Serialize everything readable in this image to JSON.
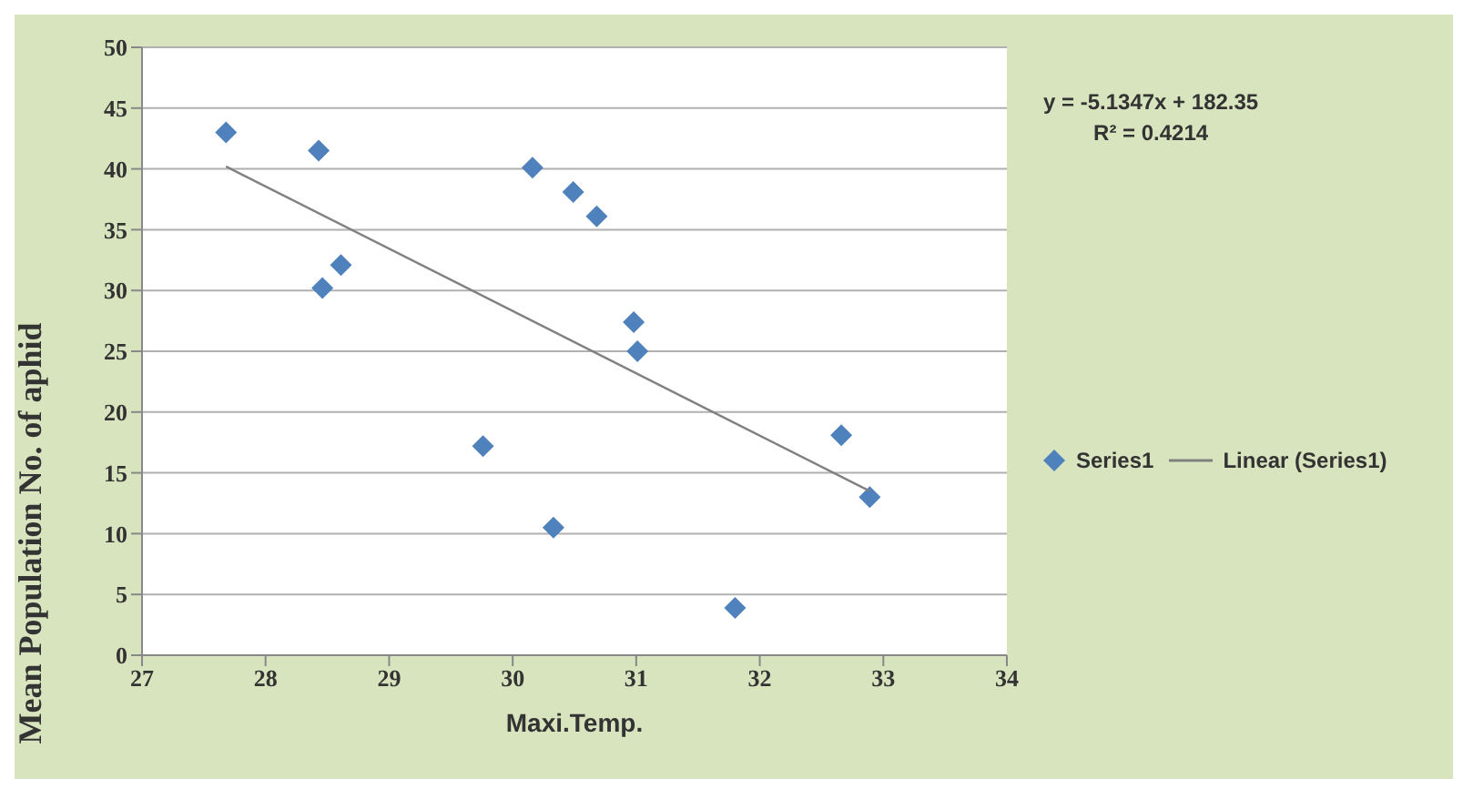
{
  "chart_data": {
    "type": "scatter",
    "xlabel": "Maxi.Temp.",
    "ylabel": "Mean Population No. of aphid",
    "annotations": [
      "y = -5.1347x + 182.35",
      "R² = 0.4214"
    ],
    "series": [
      {
        "name": "Series1",
        "color": "#4f81bd",
        "marker": "diamond",
        "x": [
          27.68,
          28.43,
          28.46,
          28.61,
          29.76,
          30.16,
          30.49,
          30.68,
          30.33,
          30.98,
          31.01,
          31.8,
          32.66,
          32.89
        ],
        "values": [
          43,
          41.5,
          30.2,
          32.1,
          17.2,
          40.1,
          38.1,
          36.1,
          10.5,
          27.4,
          25,
          3.9,
          18.1,
          13
        ]
      },
      {
        "name": "Linear (Series1)",
        "type": "line",
        "color": "#808080",
        "marker": "none",
        "x": [
          27.68,
          32.89
        ],
        "values": [
          40.2,
          13.5
        ]
      }
    ],
    "xlim": [
      27,
      34
    ],
    "xticks": [
      27,
      28,
      29,
      30,
      31,
      32,
      33,
      34
    ],
    "ylim": [
      0,
      50
    ],
    "yticks": [
      0,
      5,
      10,
      15,
      20,
      25,
      30,
      35,
      40,
      45,
      50
    ],
    "grid": "y",
    "legend": "right"
  }
}
